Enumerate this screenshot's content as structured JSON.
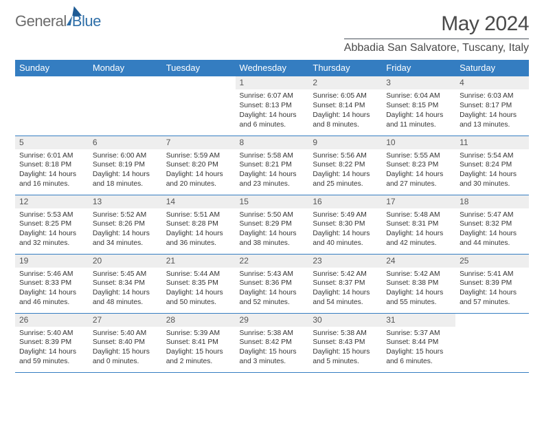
{
  "brand": {
    "part1": "General",
    "part2": "Blue"
  },
  "title": "May 2024",
  "location": "Abbadia San Salvatore, Tuscany, Italy",
  "headers": [
    "Sunday",
    "Monday",
    "Tuesday",
    "Wednesday",
    "Thursday",
    "Friday",
    "Saturday"
  ],
  "colors": {
    "header_bg": "#347dc1",
    "header_fg": "#ffffff",
    "daynum_bg": "#eeeeee",
    "rule": "#347dc1",
    "title_fg": "#4a4a4a"
  },
  "grid": [
    [
      {
        "n": "",
        "lines": [
          "",
          "",
          "",
          ""
        ],
        "empty": true
      },
      {
        "n": "",
        "lines": [
          "",
          "",
          "",
          ""
        ],
        "empty": true
      },
      {
        "n": "",
        "lines": [
          "",
          "",
          "",
          ""
        ],
        "empty": true
      },
      {
        "n": "1",
        "lines": [
          "Sunrise: 6:07 AM",
          "Sunset: 8:13 PM",
          "Daylight: 14 hours",
          "and 6 minutes."
        ]
      },
      {
        "n": "2",
        "lines": [
          "Sunrise: 6:05 AM",
          "Sunset: 8:14 PM",
          "Daylight: 14 hours",
          "and 8 minutes."
        ]
      },
      {
        "n": "3",
        "lines": [
          "Sunrise: 6:04 AM",
          "Sunset: 8:15 PM",
          "Daylight: 14 hours",
          "and 11 minutes."
        ]
      },
      {
        "n": "4",
        "lines": [
          "Sunrise: 6:03 AM",
          "Sunset: 8:17 PM",
          "Daylight: 14 hours",
          "and 13 minutes."
        ]
      }
    ],
    [
      {
        "n": "5",
        "lines": [
          "Sunrise: 6:01 AM",
          "Sunset: 8:18 PM",
          "Daylight: 14 hours",
          "and 16 minutes."
        ]
      },
      {
        "n": "6",
        "lines": [
          "Sunrise: 6:00 AM",
          "Sunset: 8:19 PM",
          "Daylight: 14 hours",
          "and 18 minutes."
        ]
      },
      {
        "n": "7",
        "lines": [
          "Sunrise: 5:59 AM",
          "Sunset: 8:20 PM",
          "Daylight: 14 hours",
          "and 20 minutes."
        ]
      },
      {
        "n": "8",
        "lines": [
          "Sunrise: 5:58 AM",
          "Sunset: 8:21 PM",
          "Daylight: 14 hours",
          "and 23 minutes."
        ]
      },
      {
        "n": "9",
        "lines": [
          "Sunrise: 5:56 AM",
          "Sunset: 8:22 PM",
          "Daylight: 14 hours",
          "and 25 minutes."
        ]
      },
      {
        "n": "10",
        "lines": [
          "Sunrise: 5:55 AM",
          "Sunset: 8:23 PM",
          "Daylight: 14 hours",
          "and 27 minutes."
        ]
      },
      {
        "n": "11",
        "lines": [
          "Sunrise: 5:54 AM",
          "Sunset: 8:24 PM",
          "Daylight: 14 hours",
          "and 30 minutes."
        ]
      }
    ],
    [
      {
        "n": "12",
        "lines": [
          "Sunrise: 5:53 AM",
          "Sunset: 8:25 PM",
          "Daylight: 14 hours",
          "and 32 minutes."
        ]
      },
      {
        "n": "13",
        "lines": [
          "Sunrise: 5:52 AM",
          "Sunset: 8:26 PM",
          "Daylight: 14 hours",
          "and 34 minutes."
        ]
      },
      {
        "n": "14",
        "lines": [
          "Sunrise: 5:51 AM",
          "Sunset: 8:28 PM",
          "Daylight: 14 hours",
          "and 36 minutes."
        ]
      },
      {
        "n": "15",
        "lines": [
          "Sunrise: 5:50 AM",
          "Sunset: 8:29 PM",
          "Daylight: 14 hours",
          "and 38 minutes."
        ]
      },
      {
        "n": "16",
        "lines": [
          "Sunrise: 5:49 AM",
          "Sunset: 8:30 PM",
          "Daylight: 14 hours",
          "and 40 minutes."
        ]
      },
      {
        "n": "17",
        "lines": [
          "Sunrise: 5:48 AM",
          "Sunset: 8:31 PM",
          "Daylight: 14 hours",
          "and 42 minutes."
        ]
      },
      {
        "n": "18",
        "lines": [
          "Sunrise: 5:47 AM",
          "Sunset: 8:32 PM",
          "Daylight: 14 hours",
          "and 44 minutes."
        ]
      }
    ],
    [
      {
        "n": "19",
        "lines": [
          "Sunrise: 5:46 AM",
          "Sunset: 8:33 PM",
          "Daylight: 14 hours",
          "and 46 minutes."
        ]
      },
      {
        "n": "20",
        "lines": [
          "Sunrise: 5:45 AM",
          "Sunset: 8:34 PM",
          "Daylight: 14 hours",
          "and 48 minutes."
        ]
      },
      {
        "n": "21",
        "lines": [
          "Sunrise: 5:44 AM",
          "Sunset: 8:35 PM",
          "Daylight: 14 hours",
          "and 50 minutes."
        ]
      },
      {
        "n": "22",
        "lines": [
          "Sunrise: 5:43 AM",
          "Sunset: 8:36 PM",
          "Daylight: 14 hours",
          "and 52 minutes."
        ]
      },
      {
        "n": "23",
        "lines": [
          "Sunrise: 5:42 AM",
          "Sunset: 8:37 PM",
          "Daylight: 14 hours",
          "and 54 minutes."
        ]
      },
      {
        "n": "24",
        "lines": [
          "Sunrise: 5:42 AM",
          "Sunset: 8:38 PM",
          "Daylight: 14 hours",
          "and 55 minutes."
        ]
      },
      {
        "n": "25",
        "lines": [
          "Sunrise: 5:41 AM",
          "Sunset: 8:39 PM",
          "Daylight: 14 hours",
          "and 57 minutes."
        ]
      }
    ],
    [
      {
        "n": "26",
        "lines": [
          "Sunrise: 5:40 AM",
          "Sunset: 8:39 PM",
          "Daylight: 14 hours",
          "and 59 minutes."
        ]
      },
      {
        "n": "27",
        "lines": [
          "Sunrise: 5:40 AM",
          "Sunset: 8:40 PM",
          "Daylight: 15 hours",
          "and 0 minutes."
        ]
      },
      {
        "n": "28",
        "lines": [
          "Sunrise: 5:39 AM",
          "Sunset: 8:41 PM",
          "Daylight: 15 hours",
          "and 2 minutes."
        ]
      },
      {
        "n": "29",
        "lines": [
          "Sunrise: 5:38 AM",
          "Sunset: 8:42 PM",
          "Daylight: 15 hours",
          "and 3 minutes."
        ]
      },
      {
        "n": "30",
        "lines": [
          "Sunrise: 5:38 AM",
          "Sunset: 8:43 PM",
          "Daylight: 15 hours",
          "and 5 minutes."
        ]
      },
      {
        "n": "31",
        "lines": [
          "Sunrise: 5:37 AM",
          "Sunset: 8:44 PM",
          "Daylight: 15 hours",
          "and 6 minutes."
        ]
      },
      {
        "n": "",
        "lines": [
          "",
          "",
          "",
          ""
        ],
        "empty": true
      }
    ]
  ]
}
